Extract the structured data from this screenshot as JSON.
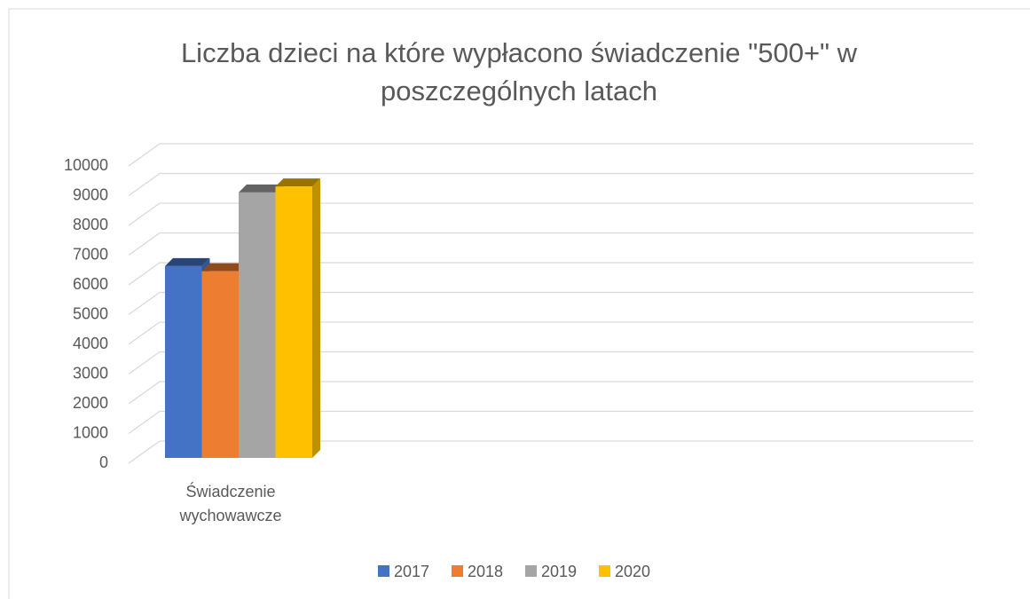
{
  "chart_data": {
    "type": "bar3d",
    "title": "Liczba dzieci na które wypłacono świadczenie \"500+\" w poszczególnych  latach",
    "categories": [
      "Świadczenie wychowawcze"
    ],
    "series": [
      {
        "name": "2017",
        "color": "#4472c4",
        "values": [
          6450
        ]
      },
      {
        "name": "2018",
        "color": "#ed7d31",
        "values": [
          6280
        ]
      },
      {
        "name": "2019",
        "color": "#a5a5a5",
        "values": [
          8930
        ]
      },
      {
        "name": "2020",
        "color": "#ffc000",
        "values": [
          9130
        ]
      }
    ],
    "ylim": [
      0,
      10000
    ],
    "yticks": [
      0,
      1000,
      2000,
      3000,
      4000,
      5000,
      6000,
      7000,
      8000,
      9000,
      10000
    ],
    "grid": true,
    "legend": "bottom"
  }
}
